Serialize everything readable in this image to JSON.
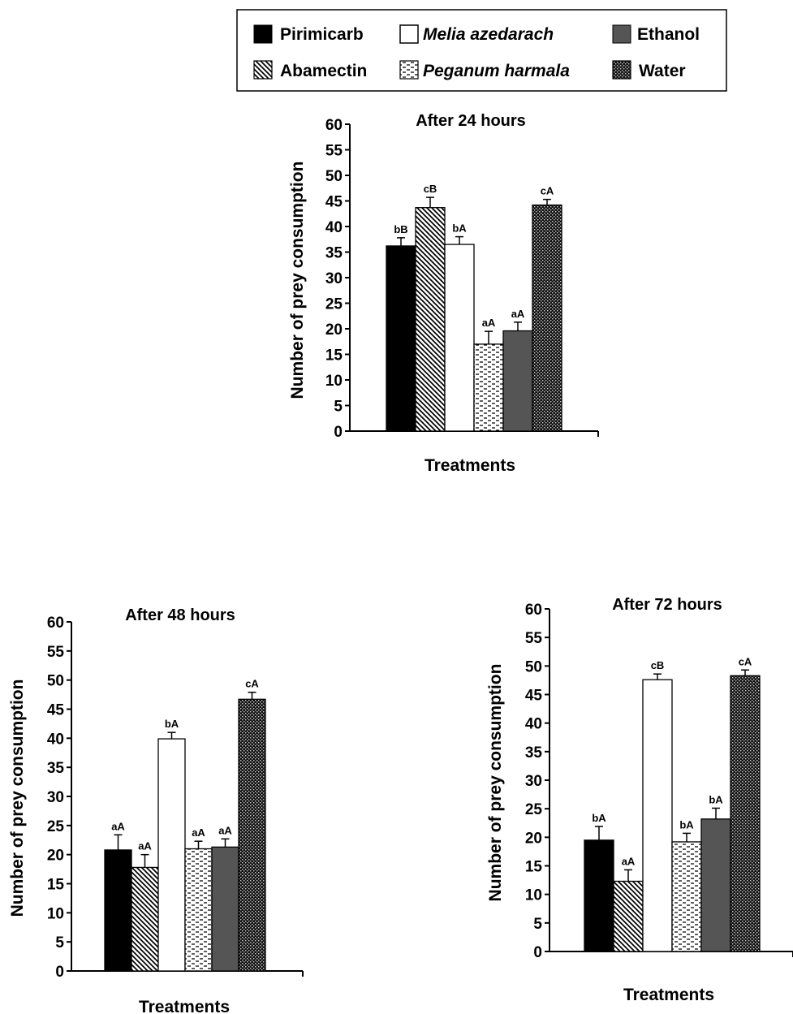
{
  "legend": [
    {
      "key": "pirimicarb",
      "name": "Pirimicarb",
      "italic": false
    },
    {
      "key": "melia",
      "name": "Melia azedarach",
      "italic": true
    },
    {
      "key": "ethanol",
      "name": "Ethanol",
      "italic": false
    },
    {
      "key": "abamectin",
      "name": "Abamectin",
      "italic": false
    },
    {
      "key": "peganum",
      "name": "Peganum harmala",
      "italic": true
    },
    {
      "key": "water",
      "name": "Water",
      "italic": false
    }
  ],
  "chart_data": [
    {
      "type": "bar",
      "title": "After 24 hours",
      "xlabel": "Treatments",
      "ylabel": "Number of prey consumption",
      "ylim": [
        0,
        60
      ],
      "yticks": [
        0,
        5,
        10,
        15,
        20,
        25,
        30,
        35,
        40,
        45,
        50,
        55,
        60
      ],
      "categories": [
        "Pirimicarb",
        "Abamectin",
        "Melia azedarach",
        "Peganum harmala",
        "Ethanol",
        "Water"
      ],
      "series": [
        {
          "values": [
            36.2,
            43.7,
            36.5,
            17.0,
            19.6,
            44.2
          ],
          "errors": [
            1.6,
            2.0,
            1.5,
            2.5,
            1.7,
            1.1
          ],
          "labels": [
            "bB",
            "cB",
            "bA",
            "aA",
            "aA",
            "cA"
          ]
        }
      ]
    },
    {
      "type": "bar",
      "title": "After 48 hours",
      "xlabel": "Treatments",
      "ylabel": "Number of prey consumption",
      "ylim": [
        0,
        60
      ],
      "yticks": [
        0,
        5,
        10,
        15,
        20,
        25,
        30,
        35,
        40,
        45,
        50,
        55,
        60
      ],
      "categories": [
        "Pirimicarb",
        "Abamectin",
        "Melia azedarach",
        "Peganum harmala",
        "Ethanol",
        "Water"
      ],
      "series": [
        {
          "values": [
            20.8,
            17.8,
            39.9,
            21.0,
            21.3,
            46.7
          ],
          "errors": [
            2.6,
            2.2,
            1.1,
            1.3,
            1.4,
            1.2
          ],
          "labels": [
            "aA",
            "aA",
            "bA",
            "aA",
            "aA",
            "cA"
          ]
        }
      ]
    },
    {
      "type": "bar",
      "title": "After 72 hours",
      "xlabel": "Treatments",
      "ylabel": "Number of prey consumption",
      "ylim": [
        0,
        60
      ],
      "yticks": [
        0,
        5,
        10,
        15,
        20,
        25,
        30,
        35,
        40,
        45,
        50,
        55,
        60
      ],
      "categories": [
        "Pirimicarb",
        "Abamectin",
        "Melia azedarach",
        "Peganum harmala",
        "Ethanol",
        "Water"
      ],
      "series": [
        {
          "values": [
            19.5,
            12.3,
            47.6,
            19.2,
            23.2,
            48.3
          ],
          "errors": [
            2.4,
            2.0,
            1.0,
            1.5,
            1.9,
            1.0
          ],
          "labels": [
            "bA",
            "aA",
            "cB",
            "bA",
            "bA",
            "cA"
          ]
        }
      ]
    }
  ]
}
